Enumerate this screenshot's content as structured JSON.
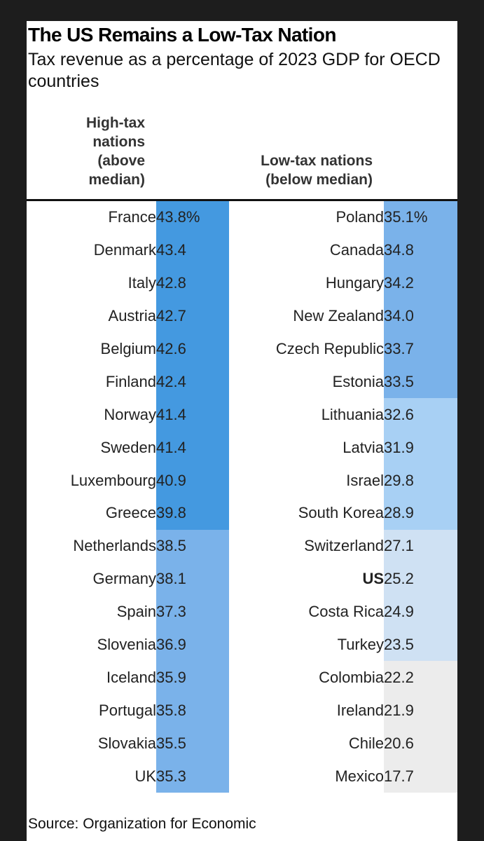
{
  "chart_data": {
    "type": "table",
    "title": "The US Remains a Low-Tax Nation",
    "subtitle": "Tax revenue as a percentage of 2023 GDP for OECD countries",
    "columns": [
      {
        "header": "High-tax nations (above median)",
        "countries": [
          "France",
          "Denmark",
          "Italy",
          "Austria",
          "Belgium",
          "Finland",
          "Norway",
          "Sweden",
          "Luxembourg",
          "Greece",
          "Netherlands",
          "Germany",
          "Spain",
          "Slovenia",
          "Iceland",
          "Portugal",
          "Slovakia",
          "UK"
        ],
        "values": [
          43.8,
          43.4,
          42.8,
          42.7,
          42.6,
          42.4,
          41.4,
          41.4,
          40.9,
          39.8,
          38.5,
          38.1,
          37.3,
          36.9,
          35.9,
          35.8,
          35.5,
          35.3
        ],
        "labels": [
          "43.8%",
          "43.4",
          "42.8",
          "42.7",
          "42.6",
          "42.4",
          "41.4",
          "41.4",
          "40.9",
          "39.8",
          "38.5",
          "38.1",
          "37.3",
          "36.9",
          "35.9",
          "35.8",
          "35.5",
          "35.3"
        ]
      },
      {
        "header": "Low-tax nations (below median)",
        "countries": [
          "Poland",
          "Canada",
          "Hungary",
          "New Zealand",
          "Czech Republic",
          "Estonia",
          "Lithuania",
          "Latvia",
          "Israel",
          "South Korea",
          "Switzerland",
          "US",
          "Costa Rica",
          "Turkey",
          "Colombia",
          "Ireland",
          "Chile",
          "Mexico"
        ],
        "values": [
          35.1,
          34.8,
          34.2,
          34.0,
          33.7,
          33.5,
          32.6,
          31.9,
          29.8,
          28.9,
          27.1,
          25.2,
          24.9,
          23.5,
          22.2,
          21.9,
          20.6,
          17.7
        ],
        "labels": [
          "35.1%",
          "34.8",
          "34.2",
          "34.0",
          "33.7",
          "33.5",
          "32.6",
          "31.9",
          "29.8",
          "28.9",
          "27.1",
          "25.2",
          "24.9",
          "23.5",
          "22.2",
          "21.9",
          "20.6",
          "17.7"
        ],
        "highlight": "US"
      }
    ],
    "color_scale": [
      {
        "min": 39.5,
        "color": "#4499e0"
      },
      {
        "min": 33.0,
        "color": "#7ab2ea"
      },
      {
        "min": 28.0,
        "color": "#a8d0f4"
      },
      {
        "min": 23.0,
        "color": "#cfe1f3"
      },
      {
        "min": 0,
        "color": "#ececec"
      }
    ]
  },
  "source": "Source: Organization for Economic"
}
